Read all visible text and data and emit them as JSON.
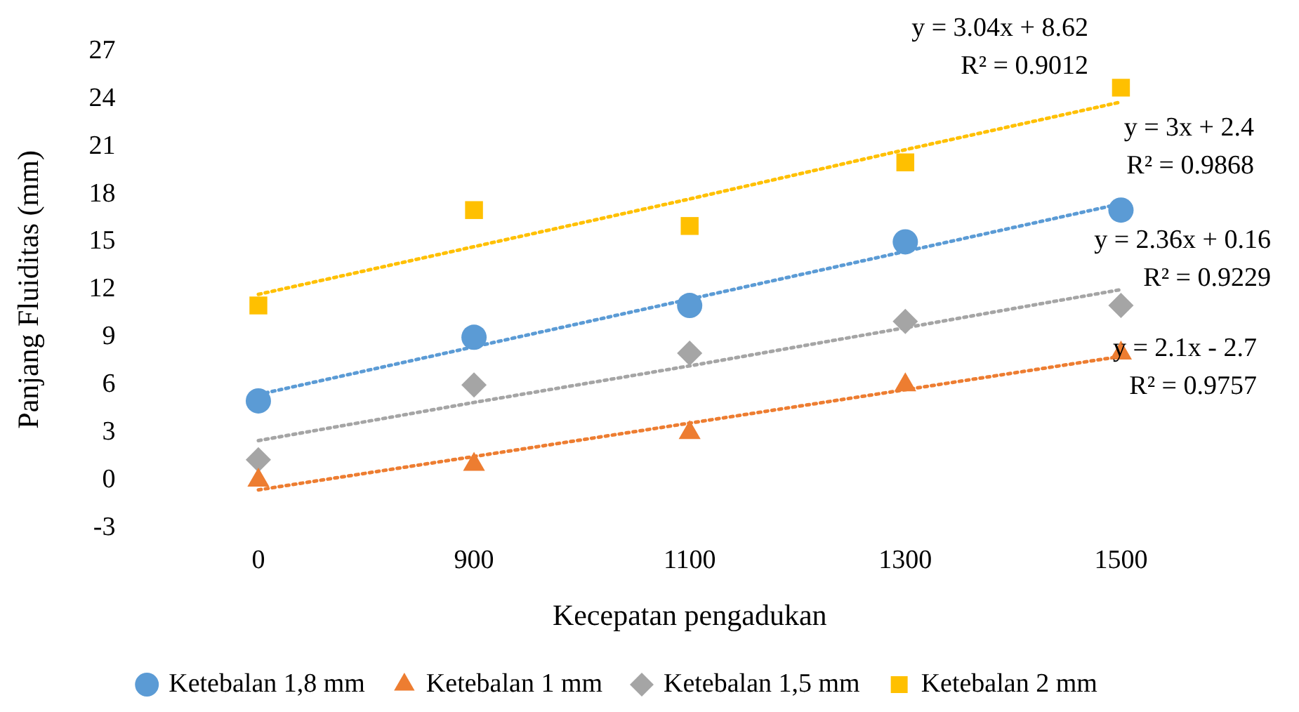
{
  "chart_data": {
    "type": "scatter",
    "xlabel": "Kecepatan pengadukan",
    "ylabel": "Panjang Fluiditas (mm)",
    "categories": [
      "0",
      "900",
      "1100",
      "1300",
      "1500"
    ],
    "ylim": [
      -3,
      27
    ],
    "yticks": [
      -3,
      0,
      3,
      6,
      9,
      12,
      15,
      18,
      21,
      24,
      27
    ],
    "grid": false,
    "legend": "bottom",
    "series": [
      {
        "name": "Ketebalan 1,8 mm",
        "color": "#5b9bd5",
        "marker": "circle",
        "values": [
          5,
          9,
          11,
          15,
          17
        ]
      },
      {
        "name": "Ketebalan 1 mm",
        "color": "#ed7d31",
        "marker": "triangle",
        "values": [
          0,
          1,
          3,
          6,
          8
        ]
      },
      {
        "name": "Ketebalan 1,5 mm",
        "color": "#a5a5a5",
        "marker": "diamond",
        "values": [
          1.3,
          6,
          8,
          10,
          11
        ]
      },
      {
        "name": "Ketebalan 2 mm",
        "color": "#ffc000",
        "marker": "square",
        "values": [
          11,
          17,
          16,
          20,
          24.7
        ]
      },
      {
        "type": "line",
        "color": "#5b9bd5",
        "marker": "none",
        "line_style": "dotted",
        "values": [
          5.4,
          8.4,
          11.4,
          14.4,
          17.4
        ]
      },
      {
        "type": "line",
        "color": "#ed7d31",
        "marker": "none",
        "line_style": "dotted",
        "values": [
          -0.6,
          1.5,
          3.6,
          5.7,
          7.8
        ]
      },
      {
        "type": "line",
        "color": "#a5a5a5",
        "marker": "none",
        "line_style": "dotted",
        "values": [
          2.5,
          4.9,
          7.2,
          9.6,
          12
        ]
      },
      {
        "type": "line",
        "color": "#ffc000",
        "marker": "none",
        "line_style": "dotted",
        "values": [
          11.7,
          14.7,
          17.7,
          20.8,
          23.8
        ]
      }
    ],
    "annotations": [
      "y = 3.04x + 8.62\nR² = 0.9012",
      "y = 3x + 2.4\nR² = 0.9868",
      "y = 2.36x + 0.16\nR² = 0.9229",
      "y = 2.1x - 2.7\nR² = 0.9757"
    ]
  }
}
